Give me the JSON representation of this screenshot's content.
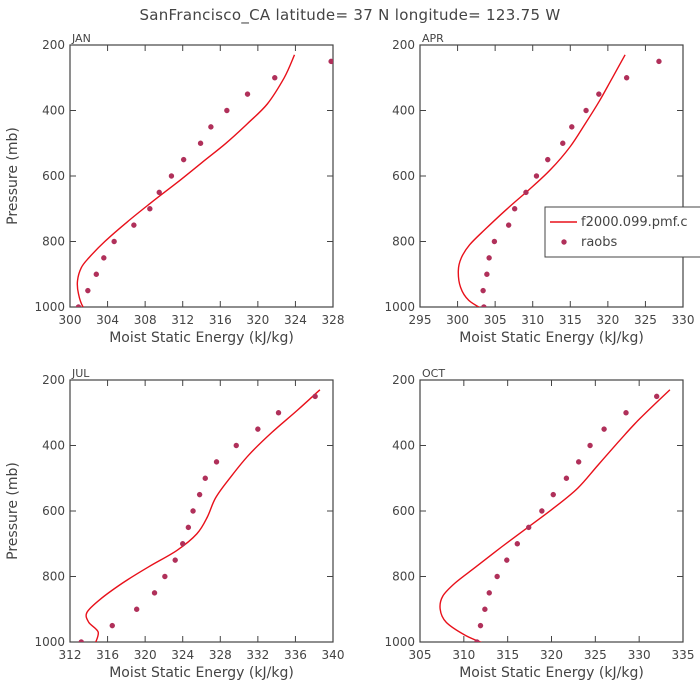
{
  "title": "SanFrancisco_CA  latitude= 37 N longitude= 123.75 W",
  "colors": {
    "model": "#e8101a",
    "obs": "#b0305a",
    "axis": "#444444"
  },
  "chart_data": [
    {
      "type": "line",
      "panel": "JAN",
      "xlabel": "Moist Static Energy (kJ/kg)",
      "ylabel": "Pressure (mb)",
      "xlim": [
        300,
        328
      ],
      "xticks": [
        300,
        304,
        308,
        312,
        316,
        320,
        324,
        328
      ],
      "ylim": [
        1000,
        200
      ],
      "yticks": [
        200,
        400,
        600,
        800,
        1000
      ],
      "legend": null,
      "series": [
        {
          "name": "f2000.099.pmf.c",
          "kind": "line",
          "x": [
            302.3,
            301.4,
            300.9,
            300.8,
            301.2,
            302.0,
            303.7,
            306.1,
            308.7,
            311.4,
            314.0,
            316.6,
            318.9,
            321.0,
            322.8,
            323.9
          ],
          "y": [
            1020,
            1000,
            960,
            920,
            880,
            850,
            800,
            740,
            680,
            620,
            560,
            500,
            440,
            380,
            300,
            230
          ]
        },
        {
          "name": "raobs",
          "kind": "points",
          "x": [
            300.9,
            301.9,
            302.8,
            303.6,
            304.7,
            306.8,
            308.5,
            309.5,
            310.8,
            312.1,
            313.9,
            315.0,
            316.7,
            318.9,
            321.8,
            327.8
          ],
          "y": [
            1000,
            950,
            900,
            850,
            800,
            750,
            700,
            650,
            600,
            550,
            500,
            450,
            400,
            350,
            300,
            250
          ]
        }
      ]
    },
    {
      "type": "line",
      "panel": "APR",
      "xlabel": "Moist Static Energy (kJ/kg)",
      "ylabel": "",
      "xlim": [
        295,
        330
      ],
      "xticks": [
        295,
        300,
        305,
        310,
        315,
        320,
        325,
        330
      ],
      "ylim": [
        1000,
        200
      ],
      "yticks": [
        200,
        400,
        600,
        800,
        1000
      ],
      "legend": "right",
      "series": [
        {
          "name": "f2000.099.pmf.c",
          "kind": "line",
          "x": [
            303.6,
            301.5,
            300.4,
            300.1,
            300.5,
            301.6,
            303.8,
            306.6,
            309.6,
            312.4,
            315.0,
            317.0,
            318.9,
            320.6,
            322.3
          ],
          "y": [
            1010,
            980,
            940,
            890,
            850,
            810,
            760,
            700,
            640,
            580,
            510,
            440,
            370,
            300,
            230
          ]
        },
        {
          "name": "raobs",
          "kind": "points",
          "x": [
            303.5,
            303.4,
            303.9,
            304.2,
            304.9,
            306.8,
            307.6,
            309.1,
            310.5,
            312.0,
            314.0,
            315.2,
            317.1,
            318.8,
            322.5,
            326.8
          ],
          "y": [
            1000,
            950,
            900,
            850,
            800,
            750,
            700,
            650,
            600,
            550,
            500,
            450,
            400,
            350,
            300,
            250
          ]
        }
      ]
    },
    {
      "type": "line",
      "panel": "JUL",
      "xlabel": "Moist Static Energy (kJ/kg)",
      "ylabel": "Pressure (mb)",
      "xlim": [
        312,
        340
      ],
      "xticks": [
        312,
        316,
        320,
        324,
        328,
        332,
        336,
        340
      ],
      "ylim": [
        1000,
        200
      ],
      "yticks": [
        200,
        400,
        600,
        800,
        1000
      ],
      "legend": null,
      "series": [
        {
          "name": "f2000.099.pmf.c",
          "kind": "line",
          "x": [
            314.6,
            315.0,
            314.0,
            313.8,
            315.2,
            317.6,
            320.4,
            323.4,
            325.5,
            326.6,
            327.5,
            329.0,
            331.0,
            333.5,
            336.3,
            338.6
          ],
          "y": [
            1010,
            970,
            940,
            910,
            870,
            820,
            770,
            720,
            670,
            620,
            560,
            500,
            430,
            360,
            290,
            230
          ]
        },
        {
          "name": "raobs",
          "kind": "points",
          "x": [
            313.2,
            316.5,
            319.1,
            321.0,
            322.1,
            323.2,
            324.0,
            324.6,
            325.1,
            325.8,
            326.4,
            327.6,
            329.7,
            332.0,
            334.2,
            338.1
          ],
          "y": [
            1000,
            950,
            900,
            850,
            800,
            750,
            700,
            650,
            600,
            550,
            500,
            450,
            400,
            350,
            300,
            250
          ]
        }
      ]
    },
    {
      "type": "line",
      "panel": "OCT",
      "xlabel": "Moist Static Energy (kJ/kg)",
      "ylabel": "",
      "xlim": [
        305,
        335
      ],
      "xticks": [
        305,
        310,
        315,
        320,
        325,
        330,
        335
      ],
      "ylim": [
        1000,
        200
      ],
      "yticks": [
        200,
        400,
        600,
        800,
        1000
      ],
      "legend": null,
      "series": [
        {
          "name": "f2000.099.pmf.c",
          "kind": "line",
          "x": [
            312.8,
            310.2,
            308.0,
            307.3,
            307.6,
            309.0,
            311.4,
            314.3,
            317.3,
            320.3,
            323.0,
            325.3,
            327.6,
            330.0,
            333.5
          ],
          "y": [
            1010,
            980,
            940,
            900,
            860,
            820,
            770,
            710,
            650,
            590,
            530,
            460,
            390,
            320,
            230
          ]
        },
        {
          "name": "raobs",
          "kind": "points",
          "x": [
            311.5,
            311.9,
            312.4,
            312.9,
            313.8,
            314.9,
            316.1,
            317.4,
            318.9,
            320.2,
            321.7,
            323.1,
            324.4,
            326.0,
            328.5,
            332.0
          ],
          "y": [
            1000,
            950,
            900,
            850,
            800,
            750,
            700,
            650,
            600,
            550,
            500,
            450,
            400,
            350,
            300,
            250
          ]
        }
      ]
    }
  ]
}
